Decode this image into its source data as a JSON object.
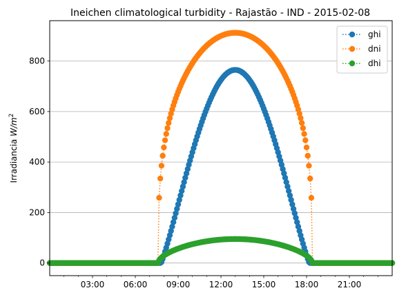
{
  "chart_data": {
    "type": "line",
    "title": "Ineichen climatological turbidity - Rajastão - IND - 2015-02-08",
    "xlabel": "",
    "ylabel_prefix": "Irradiancia ",
    "ylabel_unit_italic": "W/m",
    "ylabel_unit_sup": "2",
    "xlim_hours": [
      0,
      24
    ],
    "ylim": [
      -50,
      960
    ],
    "x_ticks": [
      {
        "hour": 3,
        "label": "03:00"
      },
      {
        "hour": 6,
        "label": "06:00"
      },
      {
        "hour": 9,
        "label": "09:00"
      },
      {
        "hour": 12,
        "label": "12:00"
      },
      {
        "hour": 15,
        "label": "15:00"
      },
      {
        "hour": 18,
        "label": "18:00"
      },
      {
        "hour": 21,
        "label": "21:00"
      }
    ],
    "y_ticks": [
      0,
      200,
      400,
      600,
      800
    ],
    "grid": "horizontal",
    "legend_position": "top-right",
    "marker": "circle",
    "line_style": "dotted",
    "sample_interval_minutes": 5,
    "series": [
      {
        "name": "ghi",
        "color": "#1f77b4",
        "sunrise_hour": 7.8,
        "sunset_hour": 18.2,
        "peak_hour": 13.0,
        "peak_value": 765,
        "shape_exponent": 1.15
      },
      {
        "name": "dni",
        "color": "#ff7f0e",
        "sunrise_hour": 7.6,
        "sunset_hour": 18.4,
        "peak_hour": 13.0,
        "peak_value": 912,
        "shape_exponent": 0.32
      },
      {
        "name": "dhi",
        "color": "#2ca02c",
        "sunrise_hour": 7.6,
        "sunset_hour": 18.4,
        "peak_hour": 13.0,
        "peak_value": 95,
        "shape_exponent": 0.55
      }
    ]
  }
}
